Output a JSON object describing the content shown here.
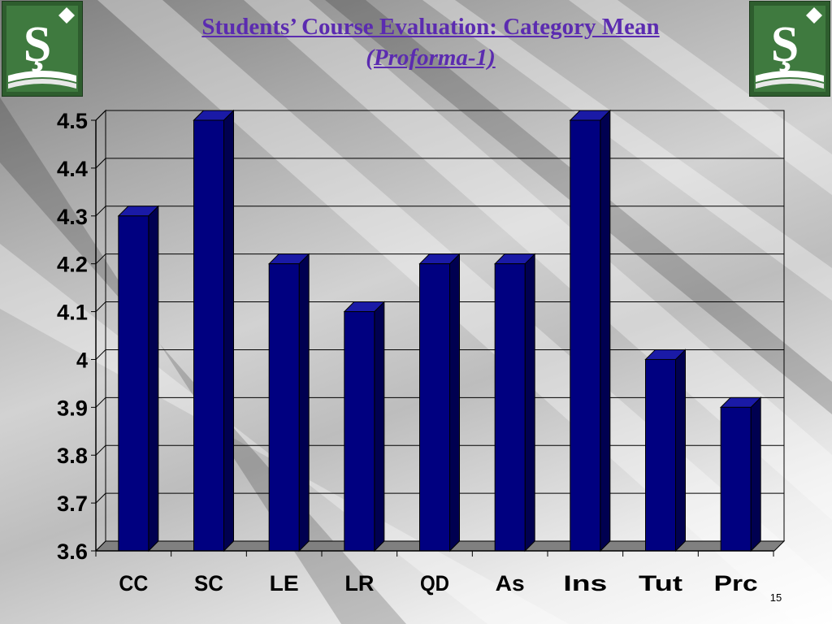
{
  "slide": {
    "title": "Students’ Course Evaluation: Category Mean",
    "subtitle": "(Proforma-1)",
    "page_number": "15",
    "logo_glyph": "Ş"
  },
  "colors": {
    "bar_front": "#000080",
    "bar_side": "#000050",
    "bar_top": "#1a1aa6",
    "title": "#5b2bb0",
    "logo_bg": "#2e5d2e"
  },
  "chart_data": {
    "type": "bar",
    "categories": [
      "CC",
      "SC",
      "LE",
      "LR",
      "QD",
      "As",
      "Ins",
      "Tut",
      "Prc"
    ],
    "values": [
      4.3,
      4.5,
      4.2,
      4.1,
      4.2,
      4.2,
      4.5,
      4.0,
      3.9
    ],
    "yticks": [
      "3.6",
      "3.7",
      "3.8",
      "3.9",
      "4",
      "4.1",
      "4.2",
      "4.3",
      "4.4",
      "4.5"
    ],
    "ylim": [
      3.6,
      4.5
    ],
    "grid": true,
    "style": "3d-column",
    "legend": "none"
  }
}
